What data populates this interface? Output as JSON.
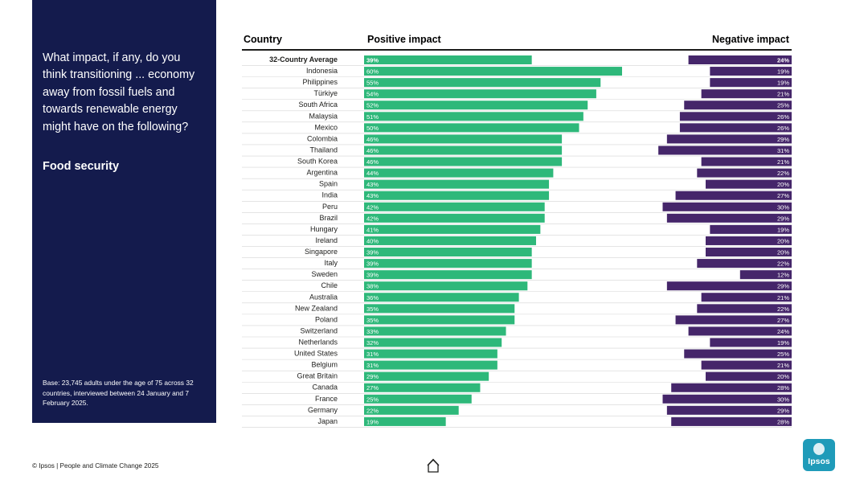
{
  "question": "What impact, if any, do you think transitioning ... economy away from fossil fuels and towards renewable energy might have on the following?",
  "subject": "Food security",
  "base_note": "Base: 23,745 adults under the age of 75 across 32 countries, interviewed between 24 January and 7 February 2025.",
  "footer": "© Ipsos | People and Climate Change 2025",
  "logo_text": "Ipsos",
  "colors": {
    "panel": "#141b4d",
    "positive": "#2eb87a",
    "negative": "#45266a",
    "brand": "#1f9bb9"
  },
  "chart_data": {
    "type": "bar",
    "title": "Food security",
    "column_headers": {
      "country": "Country",
      "positive": "Positive impact",
      "negative": "Negative impact"
    },
    "value_suffix": "%",
    "xlim": [
      0,
      100
    ],
    "categories": [
      "32-Country Average",
      "Indonesia",
      "Philippines",
      "Türkiye",
      "South Africa",
      "Malaysia",
      "Mexico",
      "Colombia",
      "Thailand",
      "South Korea",
      "Argentina",
      "Spain",
      "India",
      "Peru",
      "Brazil",
      "Hungary",
      "Ireland",
      "Singapore",
      "Italy",
      "Sweden",
      "Chile",
      "Australia",
      "New Zealand",
      "Poland",
      "Switzerland",
      "Netherlands",
      "United States",
      "Belgium",
      "Great Britain",
      "Canada",
      "France",
      "Germany",
      "Japan"
    ],
    "series": [
      {
        "name": "Positive impact",
        "values": [
          39,
          60,
          55,
          54,
          52,
          51,
          50,
          46,
          46,
          46,
          44,
          43,
          43,
          42,
          42,
          41,
          40,
          39,
          39,
          39,
          38,
          36,
          35,
          35,
          33,
          32,
          31,
          31,
          29,
          27,
          25,
          22,
          19
        ]
      },
      {
        "name": "Negative impact",
        "values": [
          24,
          19,
          19,
          21,
          25,
          26,
          26,
          29,
          31,
          21,
          22,
          20,
          27,
          30,
          29,
          19,
          20,
          20,
          22,
          12,
          29,
          21,
          22,
          27,
          24,
          19,
          25,
          21,
          20,
          28,
          30,
          29,
          28
        ]
      }
    ]
  }
}
